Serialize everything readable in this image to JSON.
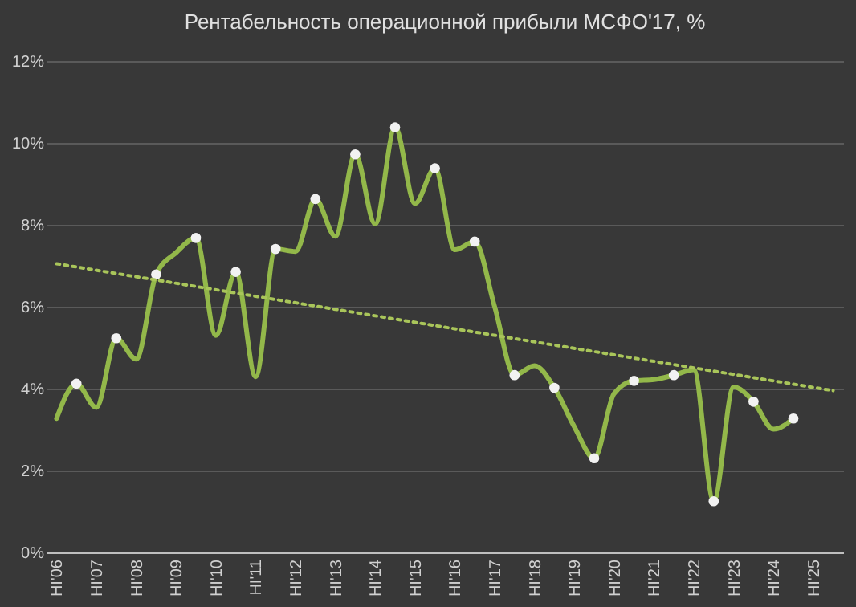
{
  "chart_data": {
    "type": "line",
    "title": "Рентабельность операционной прибыли МСФО'17, %",
    "categories": [
      "HI'06",
      null,
      "HI'07",
      null,
      "HI'08",
      null,
      "HI'09",
      null,
      "HI'10",
      null,
      "HI'11",
      null,
      "HI'12",
      null,
      "HI'13",
      null,
      "HI'14",
      null,
      "HI'15",
      null,
      "HI'16",
      null,
      "HI'17",
      null,
      "HI'18",
      null,
      "HI'19",
      null,
      "HI'20",
      null,
      "HI'21",
      null,
      "HI'22",
      null,
      "HI'23",
      null,
      "HI'24",
      null,
      "HI'25",
      null
    ],
    "series": [
      {
        "color": "#93b84a",
        "line_style": "solid",
        "values": [
          3.27,
          4.12,
          3.54,
          5.23,
          4.72,
          6.79,
          7.32,
          7.68,
          5.3,
          6.85,
          4.29,
          7.41,
          7.35,
          8.63,
          7.72,
          9.72,
          8.02,
          10.38,
          8.52,
          9.38,
          7.39,
          7.59,
          6.0,
          4.33,
          4.56,
          4.02,
          3.07,
          2.3,
          3.88,
          4.19,
          4.22,
          4.33,
          4.46,
          1.25,
          4.04,
          3.68,
          3.01,
          3.27,
          null,
          null
        ]
      },
      {
        "type": "scatter",
        "color": "#f2f2f2",
        "values": [
          null,
          4.12,
          null,
          5.23,
          null,
          6.79,
          null,
          7.68,
          null,
          6.85,
          null,
          7.41,
          null,
          8.63,
          null,
          9.72,
          null,
          10.38,
          null,
          9.38,
          null,
          7.59,
          null,
          4.33,
          null,
          4.02,
          null,
          2.3,
          null,
          4.19,
          null,
          4.33,
          null,
          1.25,
          null,
          3.68,
          null,
          3.27,
          null,
          null
        ]
      },
      {
        "color": "#a9c55a",
        "line_style": "dotted",
        "values": [
          7.05,
          null,
          null,
          null,
          null,
          null,
          null,
          null,
          null,
          null,
          null,
          null,
          null,
          null,
          null,
          null,
          null,
          null,
          null,
          null,
          null,
          null,
          null,
          null,
          null,
          null,
          null,
          null,
          null,
          null,
          null,
          null,
          null,
          null,
          null,
          null,
          null,
          null,
          null,
          3.95
        ]
      }
    ],
    "ylim": [
      0,
      12
    ],
    "yticks": [
      {
        "value": 0,
        "label": "0%"
      },
      {
        "value": 2,
        "label": "2%"
      },
      {
        "value": 4,
        "label": "4%"
      },
      {
        "value": 6,
        "label": "6%"
      },
      {
        "value": 8,
        "label": "8%"
      },
      {
        "value": 10,
        "label": "10%"
      },
      {
        "value": 12,
        "label": "12%"
      }
    ],
    "grid": "y"
  }
}
